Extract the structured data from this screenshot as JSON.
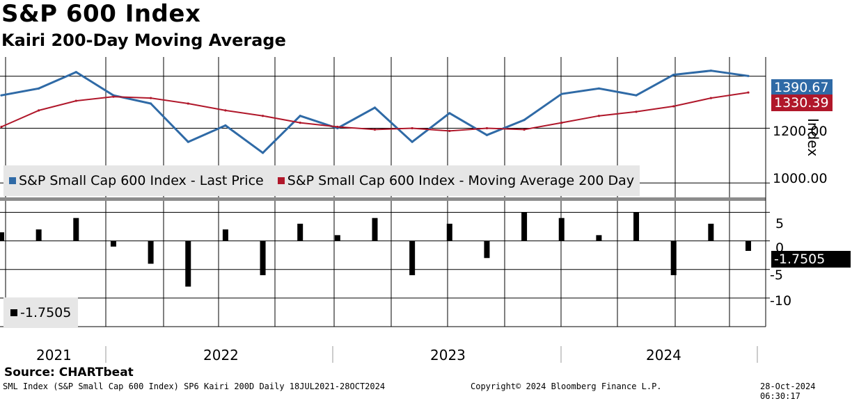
{
  "header": {
    "title": "S&P 600 Index",
    "subtitle": "Kairi 200-Day Moving Average"
  },
  "legend_top": {
    "series1": "S&P Small Cap 600 Index - Last Price",
    "series2": "S&P Small Cap 600 Index - Moving Average 200 Day"
  },
  "legend_bottom": {
    "series1": "-1.7505"
  },
  "price_axis": {
    "label": "Index",
    "tick_1200": "1200.00",
    "tick_1000": "1000.00",
    "last_price_tag": "1390.67",
    "ma_tag": "1330.39"
  },
  "kairi_axis": {
    "tick_5": "5",
    "tick_0": "0",
    "tick_m5": "-5",
    "tick_m10": "-10",
    "last_tag": "-1.7505"
  },
  "years": [
    "2021",
    "2022",
    "2023",
    "2024"
  ],
  "source": "Source: CHARTbeat",
  "footer": {
    "left": "SML Index (S&P Small Cap 600 Index) SP6 Kairi 200D  Daily 18JUL2021-28OCT2024",
    "center": "Copyright© 2024 Bloomberg Finance L.P.",
    "right": "28-Oct-2024 06:30:17"
  },
  "colors": {
    "price": "#2f6aa6",
    "ma": "#b0172a",
    "kairi": "#000000",
    "legend_bg": "#e6e6e6"
  },
  "chart_data": [
    {
      "type": "line",
      "title": "S&P 600 Index",
      "ylabel": "Index",
      "ylim": [
        950,
        1460
      ],
      "x": [
        "2021-07",
        "2021-09",
        "2021-11",
        "2022-01",
        "2022-03",
        "2022-05",
        "2022-07",
        "2022-09",
        "2022-11",
        "2023-01",
        "2023-03",
        "2023-05",
        "2023-07",
        "2023-09",
        "2023-11",
        "2024-01",
        "2024-03",
        "2024-05",
        "2024-07",
        "2024-09",
        "2024-10"
      ],
      "series": [
        {
          "name": "S&P Small Cap 600 Index - Last Price",
          "values": [
            1320,
            1345,
            1405,
            1320,
            1290,
            1150,
            1210,
            1110,
            1245,
            1200,
            1275,
            1150,
            1255,
            1175,
            1230,
            1325,
            1345,
            1320,
            1395,
            1410,
            1390.67
          ]
        },
        {
          "name": "S&P Small Cap 600 Index - Moving Average 200 Day",
          "values": [
            1205,
            1265,
            1300,
            1315,
            1310,
            1290,
            1265,
            1245,
            1220,
            1205,
            1195,
            1200,
            1190,
            1200,
            1195,
            1220,
            1245,
            1260,
            1280,
            1310,
            1330.39
          ]
        }
      ]
    },
    {
      "type": "bar",
      "title": "Kairi 200-Day Moving Average",
      "ylim": [
        -15,
        7
      ],
      "x": [
        "2021-07",
        "2021-09",
        "2021-11",
        "2022-01",
        "2022-03",
        "2022-05",
        "2022-07",
        "2022-09",
        "2022-11",
        "2023-01",
        "2023-03",
        "2023-05",
        "2023-07",
        "2023-09",
        "2023-11",
        "2024-01",
        "2024-03",
        "2024-05",
        "2024-07",
        "2024-09",
        "2024-10"
      ],
      "series": [
        {
          "name": "Kairi",
          "values": [
            1.5,
            2,
            4,
            -1,
            -4,
            -8,
            2,
            -6,
            3,
            1,
            4,
            -6,
            3,
            -3,
            5,
            4,
            1,
            5,
            -6,
            3,
            -1.7505
          ]
        }
      ]
    }
  ]
}
